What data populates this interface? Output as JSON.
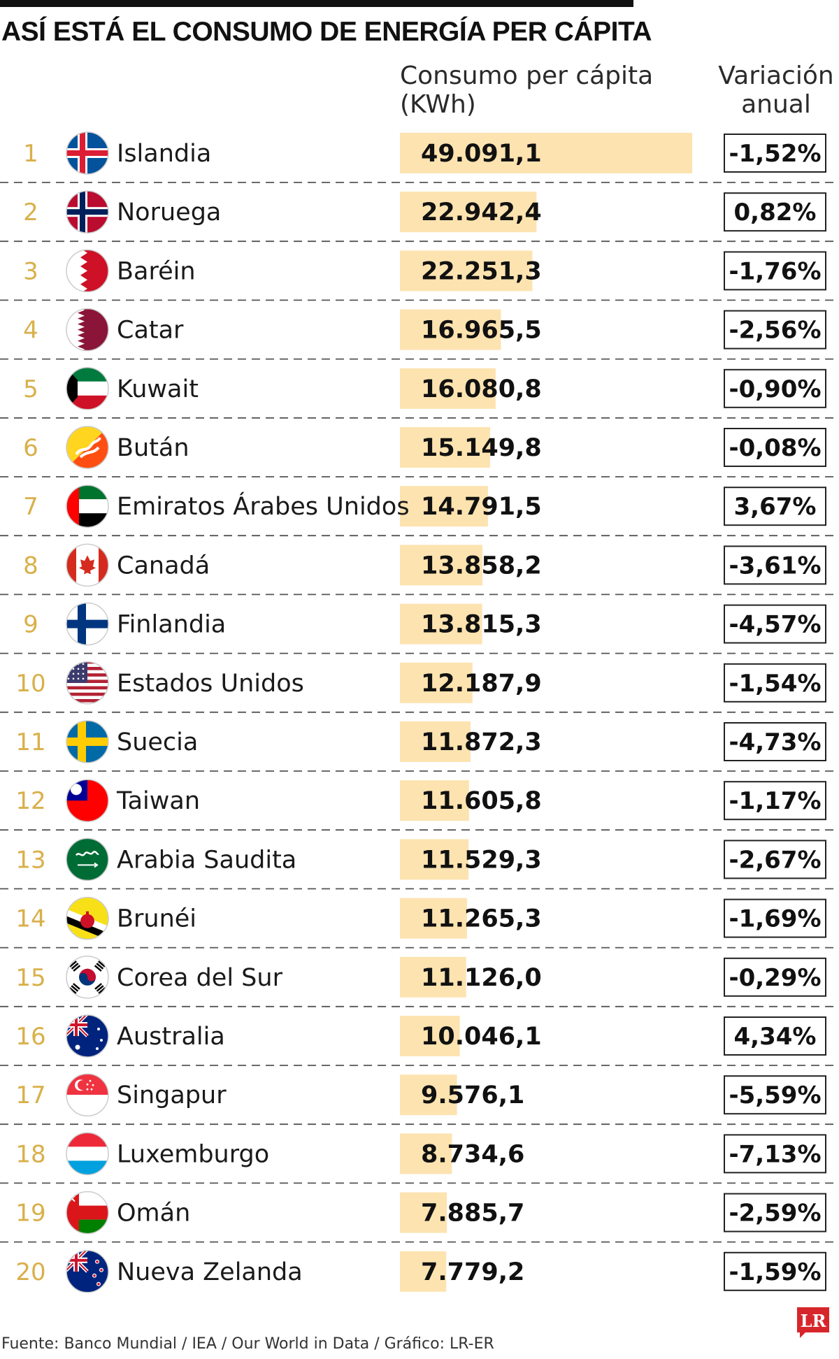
{
  "title": "ASÍ ESTÁ EL CONSUMO DE ENERGÍA PER CÁPITA",
  "columns": {
    "consumo_line1": "Consumo per cápita",
    "consumo_line2": "(KWh)",
    "variacion_line1": "Variación",
    "variacion_line2": "anual"
  },
  "footer": "Fuente: Banco Mundial / IEA / Our World in Data / Gráfico: LR-ER",
  "logo_text": "LR",
  "colors": {
    "bar": "#fde3b0",
    "rank": "#d9b04a",
    "logo": "#d7262b",
    "divider": "#555555"
  },
  "chart_data": {
    "type": "bar",
    "orientation": "horizontal",
    "title": "ASÍ ESTÁ EL CONSUMO DE ENERGÍA PER CÁPITA",
    "value_label": "Consumo per cápita (KWh)",
    "secondary_label": "Variación anual",
    "xlim": [
      0,
      49091.1
    ],
    "grid": false,
    "rows": [
      {
        "rank": "1",
        "country": "Islandia",
        "flag": "iceland-flag-icon",
        "value": 49091.1,
        "value_text": "49.091,1",
        "variation": "-1,52%"
      },
      {
        "rank": "2",
        "country": "Noruega",
        "flag": "norway-flag-icon",
        "value": 22942.4,
        "value_text": "22.942,4",
        "variation": "0,82%"
      },
      {
        "rank": "3",
        "country": "Baréin",
        "flag": "bahrain-flag-icon",
        "value": 22251.3,
        "value_text": "22.251,3",
        "variation": "-1,76%"
      },
      {
        "rank": "4",
        "country": "Catar",
        "flag": "qatar-flag-icon",
        "value": 16965.5,
        "value_text": "16.965,5",
        "variation": "-2,56%"
      },
      {
        "rank": "5",
        "country": "Kuwait",
        "flag": "kuwait-flag-icon",
        "value": 16080.8,
        "value_text": "16.080,8",
        "variation": "-0,90%"
      },
      {
        "rank": "6",
        "country": "Bután",
        "flag": "bhutan-flag-icon",
        "value": 15149.8,
        "value_text": "15.149,8",
        "variation": "-0,08%"
      },
      {
        "rank": "7",
        "country": "Emiratos Árabes Unidos",
        "flag": "uae-flag-icon",
        "value": 14791.5,
        "value_text": "14.791,5",
        "variation": "3,67%"
      },
      {
        "rank": "8",
        "country": "Canadá",
        "flag": "canada-flag-icon",
        "value": 13858.2,
        "value_text": "13.858,2",
        "variation": "-3,61%"
      },
      {
        "rank": "9",
        "country": "Finlandia",
        "flag": "finland-flag-icon",
        "value": 13815.3,
        "value_text": "13.815,3",
        "variation": "-4,57%"
      },
      {
        "rank": "10",
        "country": "Estados Unidos",
        "flag": "usa-flag-icon",
        "value": 12187.9,
        "value_text": "12.187,9",
        "variation": "-1,54%"
      },
      {
        "rank": "11",
        "country": "Suecia",
        "flag": "sweden-flag-icon",
        "value": 11872.3,
        "value_text": "11.872,3",
        "variation": "-4,73%"
      },
      {
        "rank": "12",
        "country": "Taiwan",
        "flag": "taiwan-flag-icon",
        "value": 11605.8,
        "value_text": "11.605,8",
        "variation": "-1,17%"
      },
      {
        "rank": "13",
        "country": "Arabia Saudita",
        "flag": "saudi-arabia-flag-icon",
        "value": 11529.3,
        "value_text": "11.529,3",
        "variation": "-2,67%"
      },
      {
        "rank": "14",
        "country": "Brunéi",
        "flag": "brunei-flag-icon",
        "value": 11265.3,
        "value_text": "11.265,3",
        "variation": "-1,69%"
      },
      {
        "rank": "15",
        "country": "Corea del Sur",
        "flag": "south-korea-flag-icon",
        "value": 11126.0,
        "value_text": "11.126,0",
        "variation": "-0,29%"
      },
      {
        "rank": "16",
        "country": "Australia",
        "flag": "australia-flag-icon",
        "value": 10046.1,
        "value_text": "10.046,1",
        "variation": "4,34%"
      },
      {
        "rank": "17",
        "country": "Singapur",
        "flag": "singapore-flag-icon",
        "value": 9576.1,
        "value_text": "9.576,1",
        "variation": "-5,59%"
      },
      {
        "rank": "18",
        "country": "Luxemburgo",
        "flag": "luxembourg-flag-icon",
        "value": 8734.6,
        "value_text": "8.734,6",
        "variation": "-7,13%"
      },
      {
        "rank": "19",
        "country": "Omán",
        "flag": "oman-flag-icon",
        "value": 7885.7,
        "value_text": "7.885,7",
        "variation": "-2,59%"
      },
      {
        "rank": "20",
        "country": "Nueva Zelanda",
        "flag": "new-zealand-flag-icon",
        "value": 7779.2,
        "value_text": "7.779,2",
        "variation": "-1,59%"
      }
    ]
  }
}
